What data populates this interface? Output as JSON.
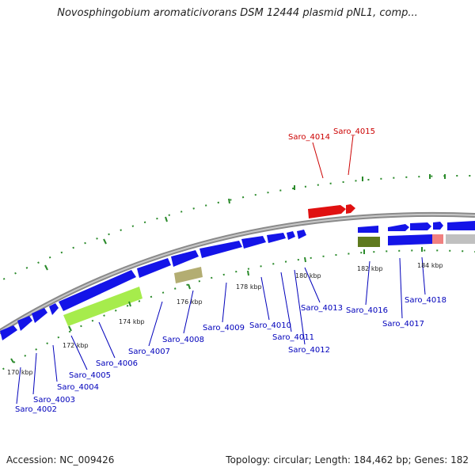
{
  "title": "Novosphingobium aromaticivorans DSM 12444 plasmid pNL1, comp...",
  "footer": {
    "accession": "Accession: NC_009426",
    "summary": "Topology: circular; Length: 184,462 bp; Genes: 182"
  },
  "colors": {
    "backbone": "#8a8a8a",
    "forward_cds": "#1010e0",
    "reverse_cds": "#e01010",
    "rna_green": "#a6ec4c",
    "olive": "#5f7a1e",
    "tan": "#b3ad72",
    "pink": "#f08080",
    "gray": "#c0c0c0",
    "label_forward": "#0000bb",
    "label_reverse": "#cc0000",
    "tick": "#2a8a2a"
  },
  "kbp_ticks": [
    "170 kbp",
    "172 kbp",
    "174 kbp",
    "176 kbp",
    "178 kbp",
    "180 kbp",
    "182 kbp",
    "184 kbp"
  ],
  "gene_labels": [
    {
      "name": "Saro_4014",
      "strand": "reverse"
    },
    {
      "name": "Saro_4015",
      "strand": "reverse"
    },
    {
      "name": "Saro_4002",
      "strand": "forward"
    },
    {
      "name": "Saro_4003",
      "strand": "forward"
    },
    {
      "name": "Saro_4004",
      "strand": "forward"
    },
    {
      "name": "Saro_4005",
      "strand": "forward"
    },
    {
      "name": "Saro_4006",
      "strand": "forward"
    },
    {
      "name": "Saro_4007",
      "strand": "forward"
    },
    {
      "name": "Saro_4008",
      "strand": "forward"
    },
    {
      "name": "Saro_4009",
      "strand": "forward"
    },
    {
      "name": "Saro_4010",
      "strand": "forward"
    },
    {
      "name": "Saro_4011",
      "strand": "forward"
    },
    {
      "name": "Saro_4012",
      "strand": "forward"
    },
    {
      "name": "Saro_4013",
      "strand": "forward"
    },
    {
      "name": "Saro_4016",
      "strand": "forward"
    },
    {
      "name": "Saro_4017",
      "strand": "forward"
    },
    {
      "name": "Saro_4018",
      "strand": "forward"
    }
  ]
}
